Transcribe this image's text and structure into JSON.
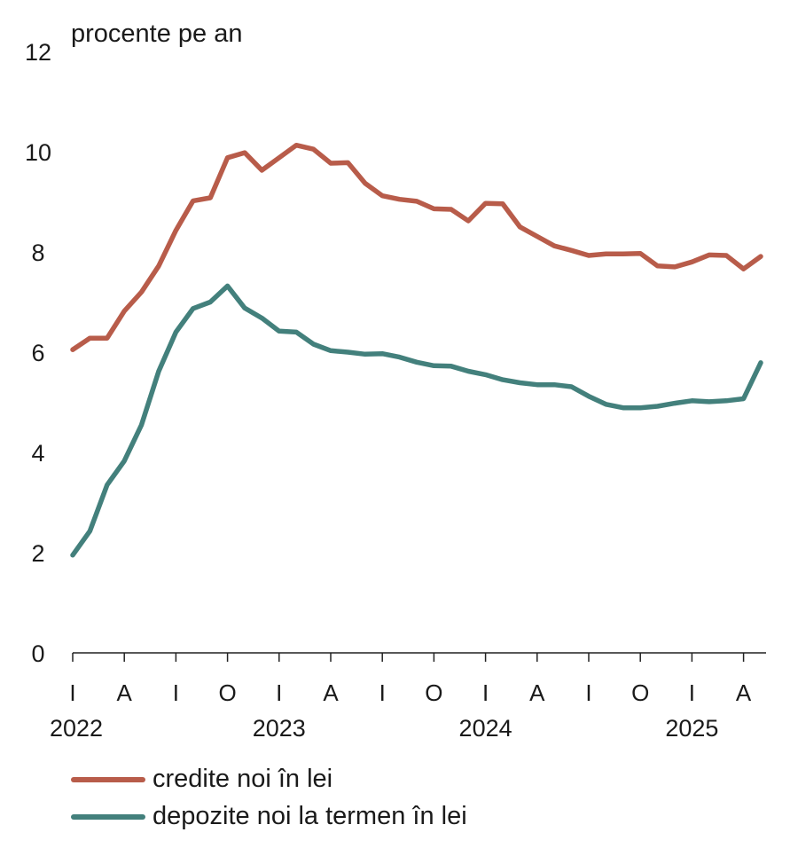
{
  "chart_data": {
    "type": "line",
    "ylabel": "procente pe an",
    "ylim": [
      0,
      12
    ],
    "y_ticks": [
      0,
      2,
      4,
      6,
      8,
      10,
      12
    ],
    "x_tick_labels": [
      "I",
      "A",
      "I",
      "O",
      "I",
      "A",
      "I",
      "O",
      "I",
      "A",
      "I",
      "O",
      "I",
      "A"
    ],
    "x_tick_months": [
      "2022-01",
      "2022-04",
      "2022-07",
      "2022-10",
      "2023-01",
      "2023-04",
      "2023-07",
      "2023-10",
      "2024-01",
      "2024-04",
      "2024-07",
      "2024-10",
      "2025-01",
      "2025-04"
    ],
    "year_labels": [
      "2022",
      "2023",
      "2024",
      "2025"
    ],
    "x": [
      "2022-01",
      "2022-02",
      "2022-03",
      "2022-04",
      "2022-05",
      "2022-06",
      "2022-07",
      "2022-08",
      "2022-09",
      "2022-10",
      "2022-11",
      "2022-12",
      "2023-01",
      "2023-02",
      "2023-03",
      "2023-04",
      "2023-05",
      "2023-06",
      "2023-07",
      "2023-08",
      "2023-09",
      "2023-10",
      "2023-11",
      "2023-12",
      "2024-01",
      "2024-02",
      "2024-03",
      "2024-04",
      "2024-05",
      "2024-06",
      "2024-07",
      "2024-08",
      "2024-09",
      "2024-10",
      "2024-11",
      "2024-12",
      "2025-01",
      "2025-02",
      "2025-03",
      "2025-04",
      "2025-05"
    ],
    "series": [
      {
        "name": "credite noi în lei",
        "color": "#b85c4a",
        "values": [
          6.05,
          6.28,
          6.28,
          6.82,
          7.2,
          7.72,
          8.43,
          9.02,
          9.08,
          9.88,
          9.98,
          9.63,
          9.88,
          10.13,
          10.05,
          9.77,
          9.78,
          9.37,
          9.12,
          9.05,
          9.01,
          8.86,
          8.85,
          8.62,
          8.97,
          8.96,
          8.5,
          8.31,
          8.12,
          8.03,
          7.93,
          7.96,
          7.96,
          7.97,
          7.72,
          7.7,
          7.8,
          7.94,
          7.93,
          7.66,
          7.91
        ]
      },
      {
        "name": "depozite noi la termen în lei",
        "color": "#43807c",
        "values": [
          1.95,
          2.43,
          3.35,
          3.83,
          4.55,
          5.62,
          6.4,
          6.87,
          7.0,
          7.32,
          6.88,
          6.68,
          6.42,
          6.4,
          6.16,
          6.03,
          6.0,
          5.96,
          5.97,
          5.9,
          5.8,
          5.73,
          5.72,
          5.62,
          5.55,
          5.45,
          5.39,
          5.35,
          5.35,
          5.31,
          5.12,
          4.96,
          4.89,
          4.89,
          4.92,
          4.98,
          5.03,
          5.01,
          5.03,
          5.07,
          5.79
        ]
      }
    ],
    "grid": false,
    "legend_position": "bottom-left"
  }
}
